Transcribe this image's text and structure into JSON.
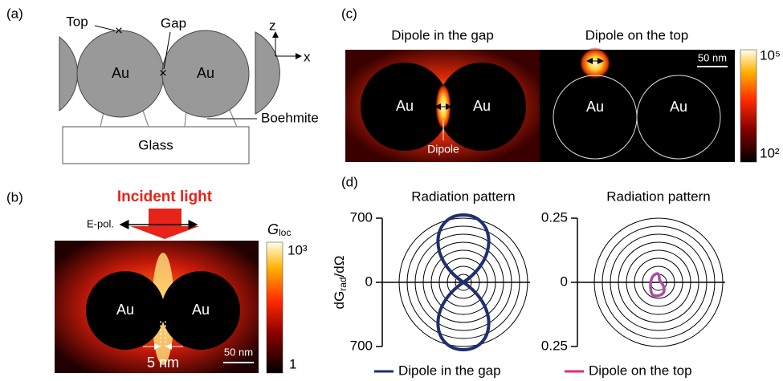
{
  "panel_a": {
    "label": "(a)",
    "top": "Top",
    "gap": "Gap",
    "spheres": [
      "Au",
      "Au"
    ],
    "boehmite": "Boehmite",
    "glass": "Glass",
    "axis_z": "z",
    "axis_x": "x"
  },
  "panel_b": {
    "label": "(b)",
    "incident": "Incident light",
    "epol": "E-pol.",
    "spheres": [
      "Au",
      "Au"
    ],
    "gap_size": "5 nm",
    "scale_bar": "50 nm",
    "colorbar": {
      "title": "G",
      "title_sub": "loc",
      "ticks": [
        "10³",
        "1"
      ]
    }
  },
  "panel_c": {
    "label": "(c)",
    "titles": [
      "Dipole in the gap",
      "Dipole on the top"
    ],
    "spheres": [
      "Au",
      "Au",
      "Au",
      "Au"
    ],
    "dipole": "Dipole",
    "scale_bar": "50 nm",
    "colorbar": {
      "ticks": [
        "10⁵",
        "10²"
      ]
    }
  },
  "panel_d": {
    "label": "(d)",
    "titles": [
      "Radiation pattern",
      "Radiation pattern"
    ],
    "ylabel": {
      "main": "dG",
      "sub": "rad",
      "tail": "/dΩ"
    },
    "left_ticks": [
      "700",
      "0",
      "700"
    ],
    "right_ticks": [
      "0.25",
      "0",
      "0.25"
    ],
    "legend": [
      "Dipole in the gap",
      "Dipole on the top"
    ]
  }
}
